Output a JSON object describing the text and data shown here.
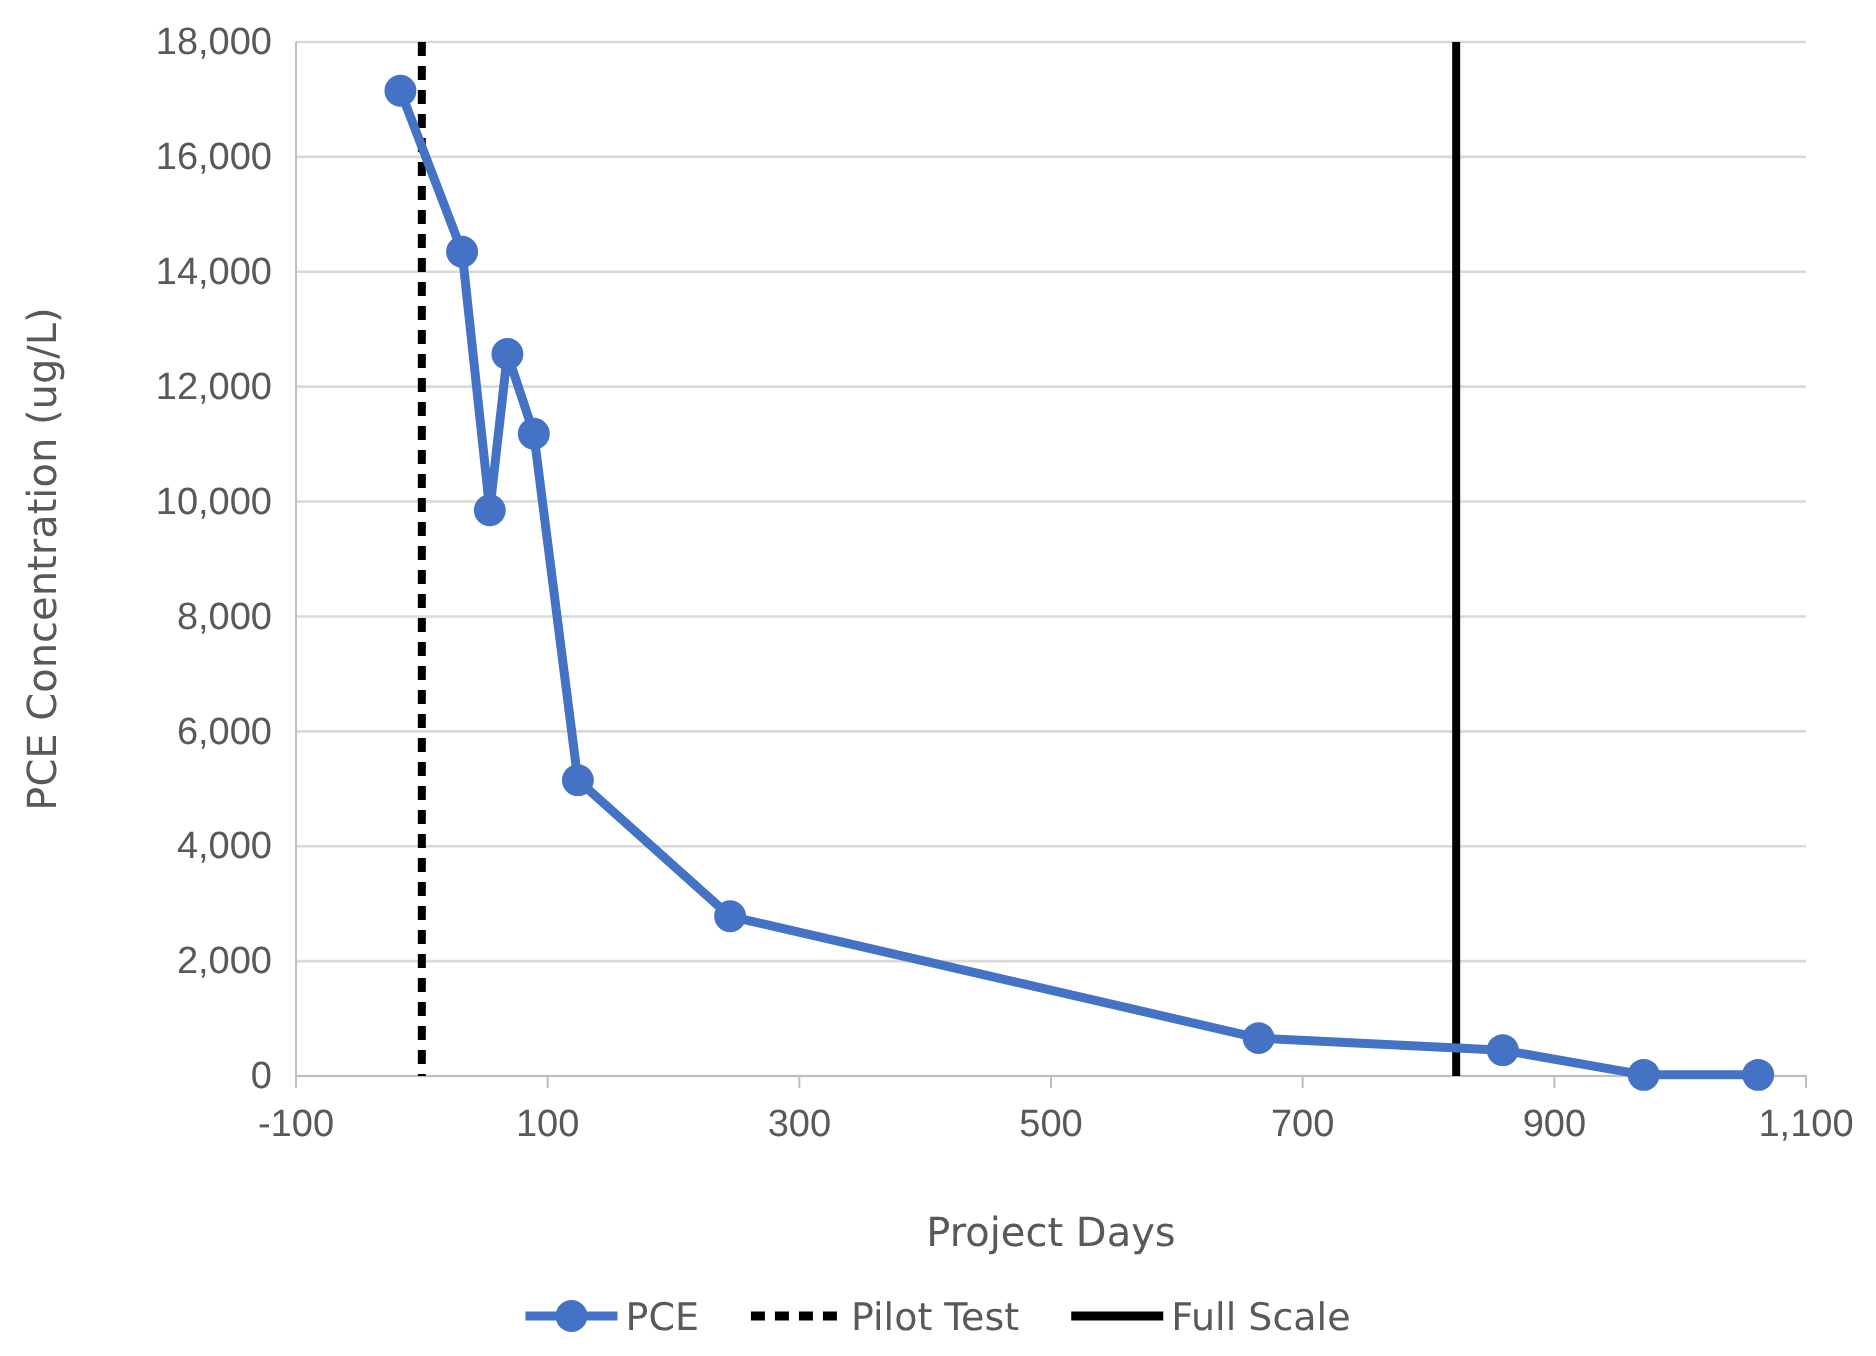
{
  "chart_data": {
    "type": "line",
    "xlabel": "Project Days",
    "ylabel": "PCE Concentration (ug/L)",
    "x": [
      -17,
      32,
      54,
      68,
      89,
      124,
      245,
      665,
      859,
      971,
      1062
    ],
    "series": [
      {
        "name": "PCE",
        "color": "#4472c4",
        "values": [
          17150,
          14350,
          9850,
          12570,
          11180,
          5150,
          2780,
          660,
          450,
          20,
          20
        ]
      }
    ],
    "xlim": [
      -100,
      1100
    ],
    "xticks": [
      -100,
      100,
      300,
      500,
      700,
      900,
      {
        "value": 1100,
        "label": "1,100"
      }
    ],
    "ylim": [
      0,
      18000
    ],
    "yticks": [
      0,
      {
        "value": 2000,
        "label": "2,000"
      },
      {
        "value": 4000,
        "label": "4,000"
      },
      {
        "value": 6000,
        "label": "6,000"
      },
      {
        "value": 8000,
        "label": "8,000"
      },
      {
        "value": 10000,
        "label": "10,000"
      },
      {
        "value": 12000,
        "label": "12,000"
      },
      {
        "value": 14000,
        "label": "14,000"
      },
      {
        "value": 16000,
        "label": "16,000"
      },
      {
        "value": 18000,
        "label": "18,000"
      }
    ],
    "ref_lines": [
      {
        "axis": "x",
        "value": 0,
        "label": "Pilot Test",
        "color": "#000000",
        "line_style": "dashed"
      },
      {
        "axis": "x",
        "value": 822,
        "label": "Full Scale",
        "color": "#000000",
        "line_style": "solid"
      }
    ],
    "grid": "y",
    "legend": "bottom",
    "marker": "circle",
    "line_style": "solid"
  }
}
